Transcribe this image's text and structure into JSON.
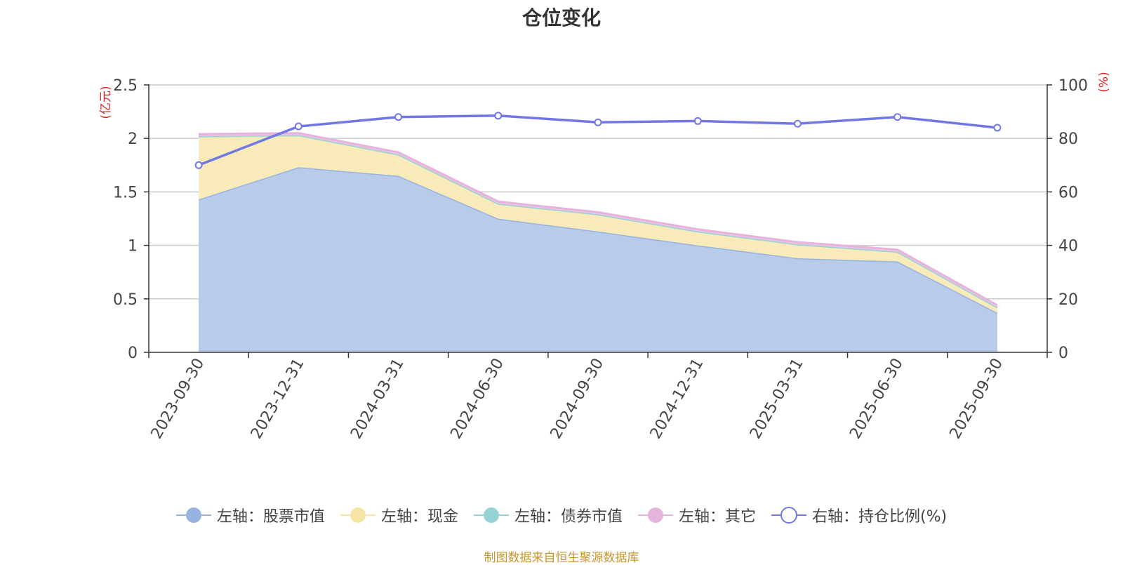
{
  "chart_data": {
    "type": "area",
    "title": "仓位变化",
    "categories": [
      "2023-09-30",
      "2023-12-31",
      "2024-03-31",
      "2024-06-30",
      "2024-09-30",
      "2024-12-31",
      "2025-03-31",
      "2025-06-30",
      "2025-09-30"
    ],
    "left_axis": {
      "unit": "(亿元)",
      "ylim": [
        0,
        2.5
      ],
      "ticks": [
        "0",
        "0.5",
        "1",
        "1.5",
        "2",
        "2.5"
      ]
    },
    "right_axis": {
      "unit": "(%)",
      "ylim": [
        0,
        100
      ],
      "ticks": [
        "0",
        "20",
        "40",
        "60",
        "80",
        "100"
      ]
    },
    "series": [
      {
        "name": "左轴：股票市值",
        "axis": "left",
        "stacked": true,
        "color": "#98b3e0",
        "fill": "#b8cbe9",
        "values": [
          1.43,
          1.73,
          1.65,
          1.25,
          1.13,
          1.0,
          0.88,
          0.85,
          0.37
        ]
      },
      {
        "name": "左轴：现金",
        "axis": "left",
        "stacked": true,
        "color": "#f5e6a6",
        "fill": "#f8ebb9",
        "values": [
          0.59,
          0.3,
          0.2,
          0.14,
          0.16,
          0.13,
          0.13,
          0.09,
          0.05
        ]
      },
      {
        "name": "左轴：债券市值",
        "axis": "left",
        "stacked": true,
        "color": "#95d3d5",
        "fill": "#b6e2e3",
        "values": [
          0,
          0,
          0,
          0,
          0,
          0,
          0,
          0,
          0
        ]
      },
      {
        "name": "左轴：其它",
        "axis": "left",
        "stacked": true,
        "color": "#e6b3dc",
        "fill": "#ecc4e4",
        "values": [
          0.02,
          0.02,
          0.02,
          0.02,
          0.02,
          0.02,
          0.02,
          0.02,
          0.02
        ]
      },
      {
        "name": "右轴：持仓比例(%)",
        "axis": "right",
        "stacked": false,
        "color": "#7178e6",
        "values": [
          70.0,
          84.5,
          88.0,
          88.5,
          86.0,
          86.5,
          85.5,
          88.0,
          84.0
        ]
      }
    ]
  },
  "footer": {
    "source": "制图数据来自恒生聚源数据库"
  }
}
